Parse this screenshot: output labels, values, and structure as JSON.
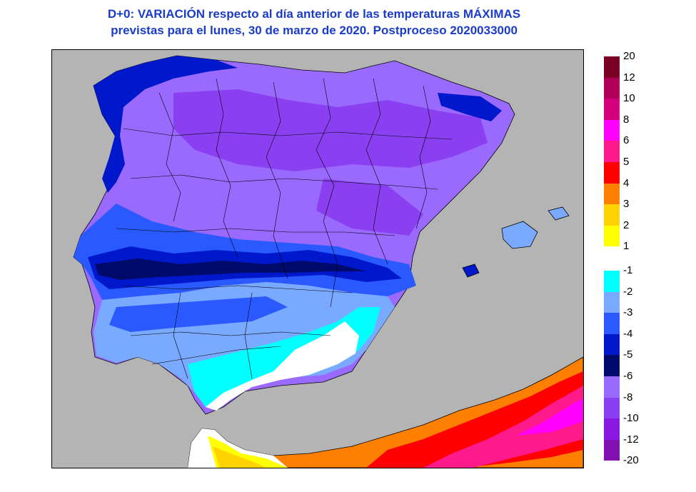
{
  "title": {
    "line1": "D+0:  VARIACIÓN respecto al día anterior de las temperaturas MÁXIMAS",
    "line2": "previstas para el lunes, 30 de marzo de 2020. Postproceso 2020033000"
  },
  "legend": {
    "positive": {
      "labels": [
        "20",
        "12",
        "10",
        "8",
        "6",
        "5",
        "4",
        "3",
        "2",
        "1"
      ],
      "colors": [
        "#7a0026",
        "#b0005a",
        "#d4007e",
        "#ff00ff",
        "#ff1a8c",
        "#ff0000",
        "#ff8000",
        "#ffd200",
        "#ffff00"
      ]
    },
    "negative": {
      "labels": [
        "-1",
        "-2",
        "-3",
        "-4",
        "-5",
        "-6",
        "-8",
        "-10",
        "-12",
        "-20"
      ],
      "colors": [
        "#00ffff",
        "#7aaaff",
        "#2a5aff",
        "#0018cc",
        "#000a6a",
        "#9a6aff",
        "#8a40f0",
        "#8a18e0",
        "#8010b0"
      ]
    }
  },
  "map": {
    "sea_color": "#b4b4b4",
    "colors": {
      "purple_light": "#9a6aff",
      "purple_mid": "#8a40f0",
      "blue_mid": "#2a5aff",
      "blue_dark": "#0018cc",
      "navy": "#000a6a",
      "blue_light": "#7aaaff",
      "cyan": "#00ffff",
      "white": "#ffffff",
      "yellow": "#ffff00",
      "amber": "#ffd200",
      "orange": "#ff8000",
      "red": "#ff0000",
      "pink": "#ff1a8c",
      "magenta": "#ff00ff"
    }
  }
}
